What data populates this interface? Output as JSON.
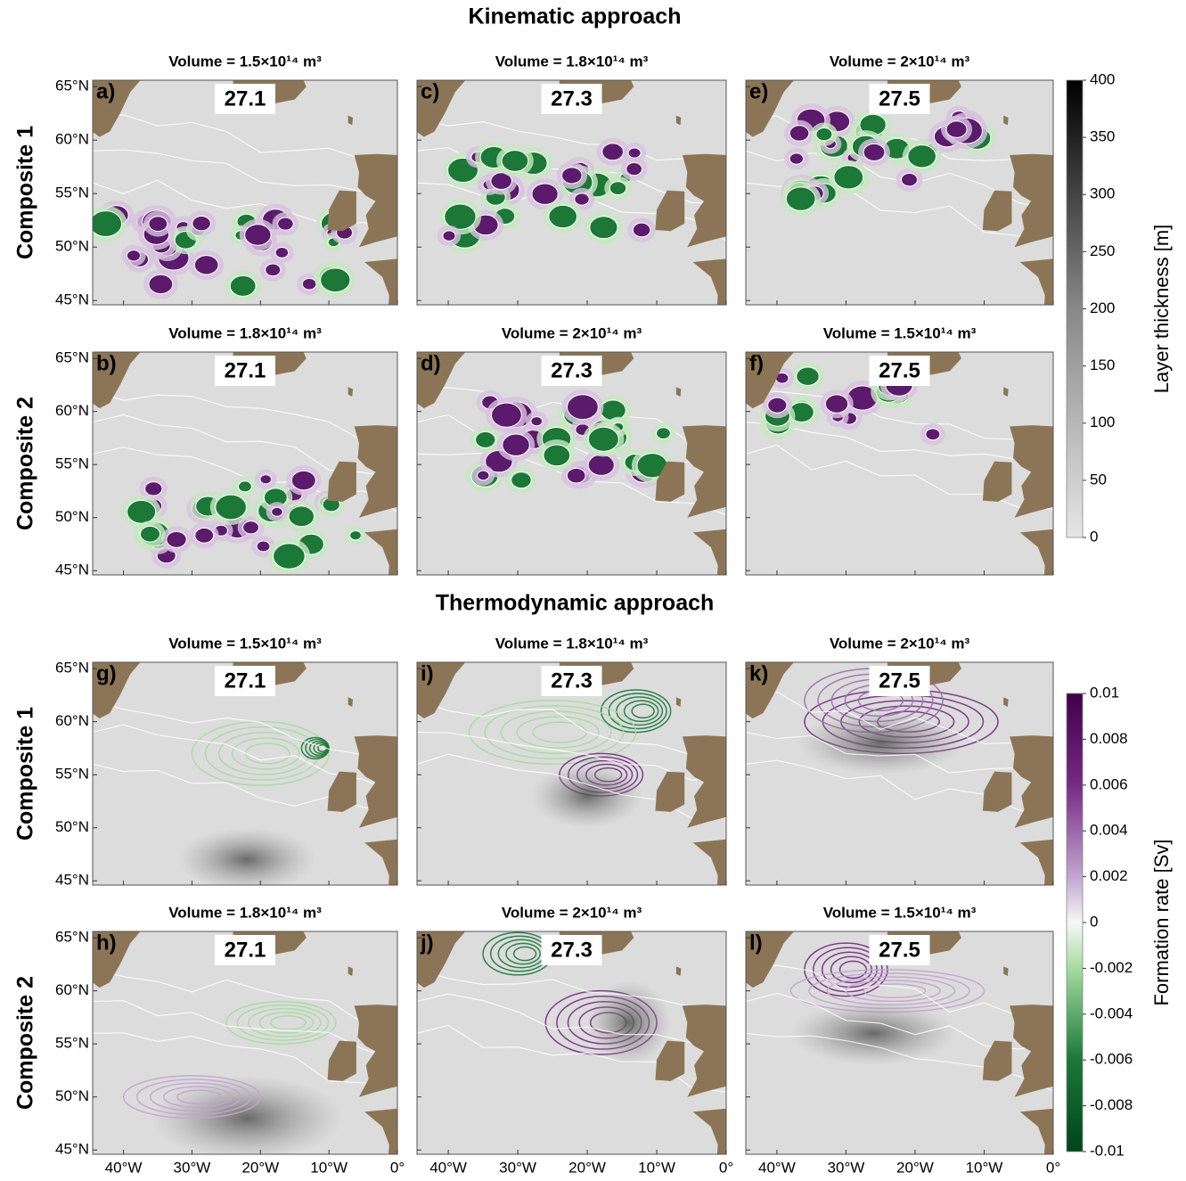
{
  "sections": [
    {
      "title": "Kinematic approach",
      "rows": [
        {
          "label": "Composite 1",
          "panels": [
            {
              "letter": "a)",
              "density": "27.1",
              "volume": "Volume = 1.5×10¹⁴ m³"
            },
            {
              "letter": "c)",
              "density": "27.3",
              "volume": "Volume = 1.8×10¹⁴ m³"
            },
            {
              "letter": "e)",
              "density": "27.5",
              "volume": "Volume = 2×10¹⁴ m³"
            }
          ]
        },
        {
          "label": "Composite 2",
          "panels": [
            {
              "letter": "b)",
              "density": "27.1",
              "volume": "Volume = 1.8×10¹⁴ m³"
            },
            {
              "letter": "d)",
              "density": "27.3",
              "volume": "Volume = 2×10¹⁴ m³"
            },
            {
              "letter": "f)",
              "density": "27.5",
              "volume": "Volume = 1.5×10¹⁴ m³"
            }
          ]
        }
      ]
    },
    {
      "title": "Thermodynamic approach",
      "rows": [
        {
          "label": "Composite 1",
          "panels": [
            {
              "letter": "g)",
              "density": "27.1",
              "volume": "Volume = 1.5×10¹⁴ m³"
            },
            {
              "letter": "i)",
              "density": "27.3",
              "volume": "Volume = 1.8×10¹⁴ m³"
            },
            {
              "letter": "k)",
              "density": "27.5",
              "volume": "Volume = 2×10¹⁴ m³"
            }
          ]
        },
        {
          "label": "Composite 2",
          "panels": [
            {
              "letter": "h)",
              "density": "27.1",
              "volume": "Volume = 1.8×10¹⁴ m³"
            },
            {
              "letter": "j)",
              "density": "27.3",
              "volume": "Volume = 2×10¹⁴ m³"
            },
            {
              "letter": "l)",
              "density": "27.5",
              "volume": "Volume = 1.5×10¹⁴ m³"
            }
          ]
        }
      ]
    }
  ],
  "map": {
    "xlim": [
      -44.5,
      0
    ],
    "ylim": [
      44.6,
      65.6
    ],
    "xticks": [
      {
        "value": -40,
        "label": "40°W"
      },
      {
        "value": -30,
        "label": "30°W"
      },
      {
        "value": -20,
        "label": "20°W"
      },
      {
        "value": -10,
        "label": "10°W"
      },
      {
        "value": 0,
        "label": "0°"
      }
    ],
    "yticks": [
      {
        "value": 45,
        "label": "45°N"
      },
      {
        "value": 50,
        "label": "50°N"
      },
      {
        "value": 55,
        "label": "55°N"
      },
      {
        "value": 60,
        "label": "60°N"
      },
      {
        "value": 65,
        "label": "65°N"
      }
    ]
  },
  "colorbars": [
    {
      "label": "Layer thickness [m]",
      "lim": [
        0,
        400
      ],
      "ticks": [
        0,
        50,
        100,
        150,
        200,
        250,
        300,
        350,
        400
      ]
    },
    {
      "label": "Formation rate [Sv]",
      "lim": [
        -0.01,
        0.01
      ],
      "ticks": [
        -0.01,
        -0.008,
        -0.006,
        -0.004,
        -0.002,
        0,
        0.002,
        0.004,
        0.006,
        0.008,
        0.01
      ]
    }
  ]
}
